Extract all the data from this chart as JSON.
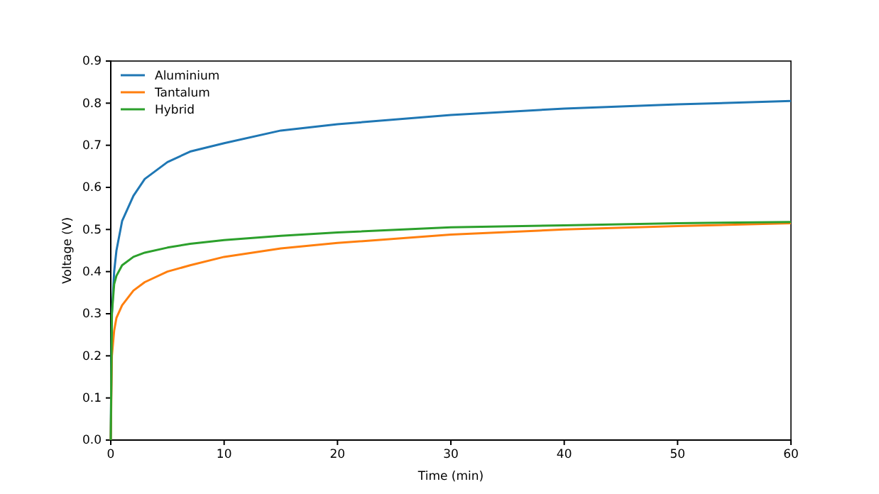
{
  "chart_data": {
    "type": "line",
    "xlabel": "Time (min)",
    "ylabel": "Voltage (V)",
    "x": [
      0,
      0.1,
      0.3,
      0.5,
      1,
      2,
      3,
      5,
      7,
      10,
      15,
      20,
      30,
      40,
      50,
      60
    ],
    "series": [
      {
        "name": "Aluminium",
        "color": "#1f77b4",
        "values": [
          0,
          0.3,
          0.4,
          0.45,
          0.52,
          0.58,
          0.62,
          0.66,
          0.685,
          0.705,
          0.735,
          0.75,
          0.772,
          0.787,
          0.797,
          0.805
        ]
      },
      {
        "name": "Tantalum",
        "color": "#ff7f0e",
        "values": [
          0,
          0.2,
          0.26,
          0.29,
          0.32,
          0.355,
          0.375,
          0.4,
          0.415,
          0.435,
          0.455,
          0.468,
          0.488,
          0.5,
          0.508,
          0.515
        ]
      },
      {
        "name": "Hybrid",
        "color": "#2ca02c",
        "values": [
          0,
          0.3,
          0.37,
          0.39,
          0.415,
          0.435,
          0.445,
          0.457,
          0.466,
          0.475,
          0.485,
          0.493,
          0.505,
          0.51,
          0.515,
          0.518
        ]
      }
    ],
    "xlim": [
      0,
      60
    ],
    "ylim": [
      0,
      0.9
    ],
    "xticks": [
      0,
      10,
      20,
      30,
      40,
      50,
      60
    ],
    "yticks": [
      {
        "value": 0,
        "label": "0.0"
      },
      0.1,
      0.2,
      0.3,
      0.4,
      0.5,
      0.6,
      0.7,
      0.8,
      0.9
    ],
    "legend": "top left",
    "grid": false,
    "marker": "none",
    "line_style": "solid"
  }
}
